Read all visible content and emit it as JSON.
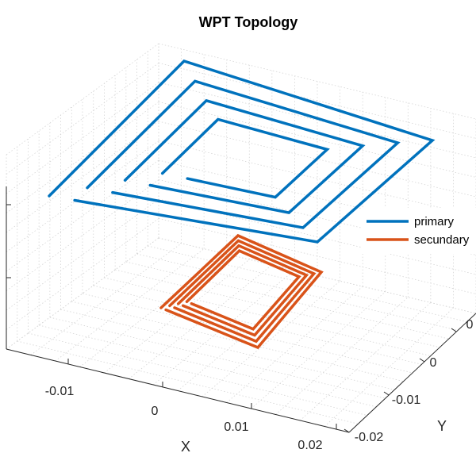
{
  "chart_data": {
    "type": "line3d",
    "title": "WPT Topology",
    "xlabel": "X",
    "ylabel": "Y",
    "zlabel": "",
    "x_ticks": [
      "-0.01",
      "0",
      "0.01",
      "0.02"
    ],
    "y_ticks": [
      "-0.02",
      "-0.01",
      "0",
      "0"
    ],
    "legend": {
      "location": "right",
      "entries": [
        "primary",
        "secundary"
      ]
    },
    "grid": true,
    "series": [
      {
        "name": "primary",
        "color": "#0072BD",
        "turns": 4,
        "shape": "square spiral",
        "layer": "upper"
      },
      {
        "name": "secundary",
        "color": "#D95319",
        "turns": 4,
        "shape": "rectangular spiral",
        "layer": "lower"
      }
    ]
  }
}
